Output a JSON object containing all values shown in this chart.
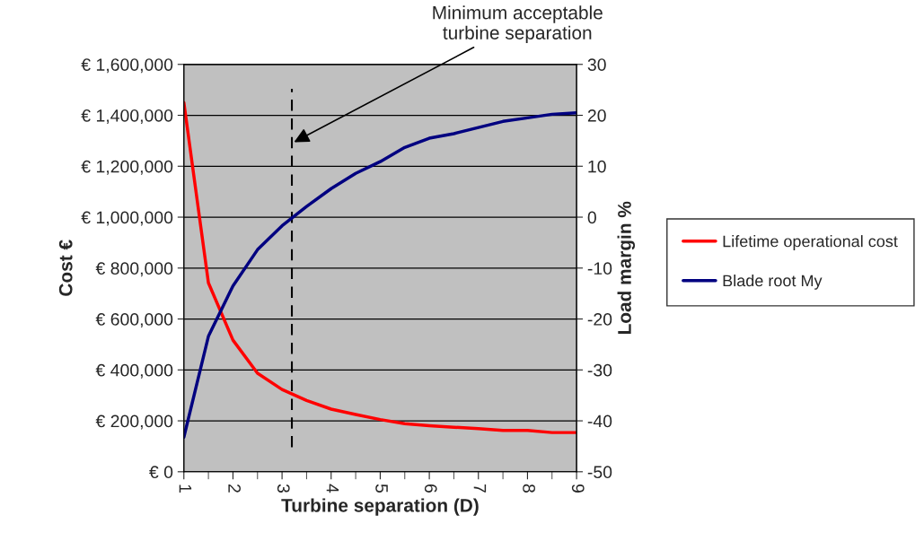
{
  "chart_data": {
    "type": "line",
    "xlabel": "Turbine separation (D)",
    "ylabel": "Cost €",
    "y2label": "Load margin %",
    "x": [
      1,
      1.5,
      2,
      2.5,
      3,
      3.5,
      4,
      4.5,
      5,
      5.5,
      6,
      6.5,
      7,
      7.5,
      8,
      8.5,
      9
    ],
    "series": [
      {
        "name": "Lifetime operational cost",
        "color": "#ff0000",
        "values": [
          1450000,
          742000,
          517000,
          387000,
          323000,
          280000,
          246000,
          225000,
          205000,
          189000,
          181000,
          175000,
          169000,
          162000,
          162000,
          154000,
          154000
        ]
      },
      {
        "name": "Blade root My",
        "color": "#000080",
        "axis": "y2",
        "values": [
          -43.2,
          -23.4,
          -13.5,
          -6.4,
          -1.7,
          2.1,
          5.6,
          8.6,
          10.9,
          13.7,
          15.5,
          16.4,
          17.6,
          18.8,
          19.5,
          20.2,
          20.5
        ]
      }
    ],
    "xlim": [
      1,
      9
    ],
    "xticks": [
      1,
      2,
      3,
      4,
      5,
      6,
      7,
      8,
      9
    ],
    "ylim": [
      0,
      1600000
    ],
    "yticks": [
      {
        "value": 0,
        "label": "€ 0"
      },
      {
        "value": 200000,
        "label": "€ 200,000"
      },
      {
        "value": 400000,
        "label": "€ 400,000"
      },
      {
        "value": 600000,
        "label": "€ 600,000"
      },
      {
        "value": 800000,
        "label": "€ 800,000"
      },
      {
        "value": 1000000,
        "label": "€ 1,000,000"
      },
      {
        "value": 1200000,
        "label": "€ 1,200,000"
      },
      {
        "value": 1400000,
        "label": "€ 1,400,000"
      },
      {
        "value": 1600000,
        "label": "€ 1,600,000"
      }
    ],
    "y2lim": [
      -50,
      30
    ],
    "y2ticks": [
      -50,
      -40,
      -30,
      -20,
      -10,
      0,
      10,
      20,
      30
    ],
    "ref_lines": [
      {
        "axis": "x",
        "value": 3.2,
        "color": "#000000",
        "line_style": "dashed"
      }
    ],
    "annotations": [
      {
        "text": "Minimum acceptable\nturbine separation",
        "x": 3.2,
        "y": 1290000
      }
    ],
    "grid": "y",
    "legend": "right",
    "marker": "none",
    "line_style": "solid"
  }
}
